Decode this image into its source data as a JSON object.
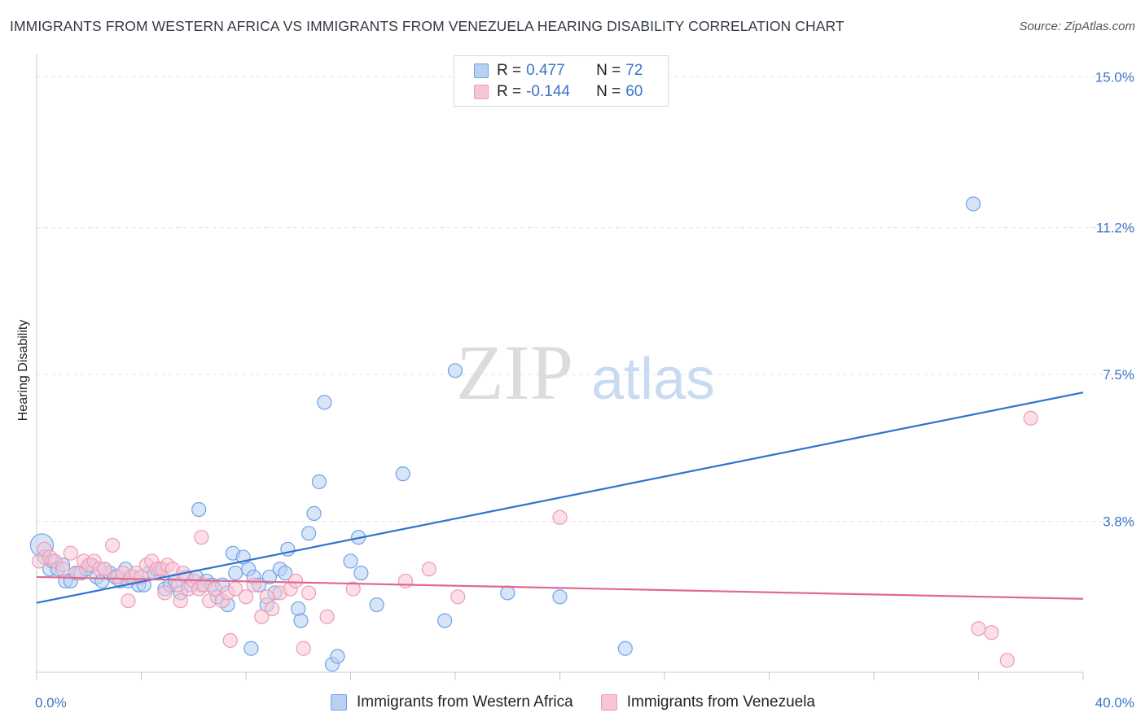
{
  "title": "IMMIGRANTS FROM WESTERN AFRICA VS IMMIGRANTS FROM VENEZUELA HEARING DISABILITY CORRELATION CHART",
  "source": "Source: ZipAtlas.com",
  "watermark": {
    "zip": "ZIP",
    "atlas": "atlas"
  },
  "legend": {
    "r_label": "R =",
    "n_label": "N =",
    "rows": [
      {
        "r": "0.477",
        "n": "72"
      },
      {
        "r": "-0.144",
        "n": "60"
      }
    ]
  },
  "chart_data": {
    "type": "scatter",
    "title": "IMMIGRANTS FROM WESTERN AFRICA VS IMMIGRANTS FROM VENEZUELA HEARING DISABILITY CORRELATION CHART",
    "xlabel": "",
    "ylabel": "Hearing Disability",
    "xlim": [
      0,
      40
    ],
    "ylim": [
      0,
      15.5
    ],
    "x_tick_labels": [
      "0.0%",
      "40.0%"
    ],
    "y_ticks": [
      3.8,
      7.5,
      11.2,
      15.0
    ],
    "y_tick_labels": [
      "3.8%",
      "7.5%",
      "11.2%",
      "15.0%"
    ],
    "grid": true,
    "legend_position": "top-center",
    "series": [
      {
        "name": "Immigrants from Western Africa",
        "color": "#6fa2e6",
        "fill": "#b8d0f2",
        "trend": {
          "x": [
            0,
            40
          ],
          "y": [
            1.75,
            7.05
          ],
          "color": "#2f73cf"
        },
        "points": [
          [
            0.2,
            3.2
          ],
          [
            0.3,
            2.9
          ],
          [
            0.5,
            2.6
          ],
          [
            0.6,
            2.8
          ],
          [
            0.8,
            2.6
          ],
          [
            1.0,
            2.7
          ],
          [
            1.1,
            2.3
          ],
          [
            1.3,
            2.3
          ],
          [
            1.5,
            2.5
          ],
          [
            1.7,
            2.5
          ],
          [
            1.9,
            2.6
          ],
          [
            2.1,
            2.7
          ],
          [
            2.3,
            2.4
          ],
          [
            2.5,
            2.3
          ],
          [
            2.6,
            2.6
          ],
          [
            2.8,
            2.5
          ],
          [
            3.0,
            2.4
          ],
          [
            3.2,
            2.3
          ],
          [
            3.4,
            2.6
          ],
          [
            3.5,
            2.3
          ],
          [
            3.7,
            2.4
          ],
          [
            3.9,
            2.2
          ],
          [
            4.1,
            2.2
          ],
          [
            4.3,
            2.5
          ],
          [
            4.5,
            2.5
          ],
          [
            4.7,
            2.6
          ],
          [
            4.9,
            2.1
          ],
          [
            5.1,
            2.2
          ],
          [
            5.3,
            2.3
          ],
          [
            5.5,
            2.0
          ],
          [
            5.7,
            2.4
          ],
          [
            5.9,
            2.2
          ],
          [
            6.1,
            2.4
          ],
          [
            6.3,
            2.2
          ],
          [
            6.5,
            2.3
          ],
          [
            6.7,
            2.2
          ],
          [
            6.9,
            1.9
          ],
          [
            7.1,
            2.2
          ],
          [
            7.3,
            1.7
          ],
          [
            7.5,
            3.0
          ],
          [
            7.6,
            2.5
          ],
          [
            7.9,
            2.9
          ],
          [
            8.1,
            2.6
          ],
          [
            8.3,
            2.4
          ],
          [
            8.5,
            2.2
          ],
          [
            8.8,
            1.7
          ],
          [
            8.9,
            2.4
          ],
          [
            9.1,
            2.0
          ],
          [
            9.3,
            2.6
          ],
          [
            9.5,
            2.5
          ],
          [
            9.6,
            3.1
          ],
          [
            10.0,
            1.6
          ],
          [
            10.1,
            1.3
          ],
          [
            10.4,
            3.5
          ],
          [
            10.6,
            4.0
          ],
          [
            10.8,
            4.8
          ],
          [
            11.0,
            6.8
          ],
          [
            11.3,
            0.2
          ],
          [
            11.5,
            0.4
          ],
          [
            12.0,
            2.8
          ],
          [
            12.3,
            3.4
          ],
          [
            12.4,
            2.5
          ],
          [
            13.0,
            1.7
          ],
          [
            14.0,
            5.0
          ],
          [
            15.6,
            1.3
          ],
          [
            16.0,
            7.6
          ],
          [
            18.0,
            2.0
          ],
          [
            20.0,
            1.9
          ],
          [
            22.5,
            0.6
          ],
          [
            8.2,
            0.6
          ],
          [
            6.2,
            4.1
          ],
          [
            35.8,
            11.8
          ]
        ]
      },
      {
        "name": "Immigrants from Venezuela",
        "color": "#ee9ab5",
        "fill": "#f7c6d6",
        "trend": {
          "x": [
            0,
            40
          ],
          "y": [
            2.4,
            1.85
          ],
          "color": "#e0698f"
        },
        "points": [
          [
            0.1,
            2.8
          ],
          [
            0.3,
            3.1
          ],
          [
            0.5,
            2.9
          ],
          [
            0.7,
            2.8
          ],
          [
            1.0,
            2.6
          ],
          [
            1.3,
            3.0
          ],
          [
            1.6,
            2.5
          ],
          [
            1.8,
            2.8
          ],
          [
            2.0,
            2.7
          ],
          [
            2.2,
            2.8
          ],
          [
            2.4,
            2.6
          ],
          [
            2.6,
            2.6
          ],
          [
            2.9,
            3.2
          ],
          [
            3.1,
            2.4
          ],
          [
            3.3,
            2.5
          ],
          [
            3.6,
            2.4
          ],
          [
            3.8,
            2.5
          ],
          [
            4.0,
            2.4
          ],
          [
            4.2,
            2.7
          ],
          [
            4.4,
            2.8
          ],
          [
            4.6,
            2.6
          ],
          [
            4.8,
            2.6
          ],
          [
            5.0,
            2.7
          ],
          [
            5.2,
            2.6
          ],
          [
            5.4,
            2.2
          ],
          [
            5.6,
            2.5
          ],
          [
            5.8,
            2.1
          ],
          [
            6.0,
            2.3
          ],
          [
            6.2,
            2.1
          ],
          [
            6.4,
            2.2
          ],
          [
            6.6,
            1.8
          ],
          [
            6.8,
            2.1
          ],
          [
            7.1,
            1.8
          ],
          [
            7.3,
            2.0
          ],
          [
            7.6,
            2.1
          ],
          [
            8.0,
            1.9
          ],
          [
            8.3,
            2.2
          ],
          [
            8.6,
            1.4
          ],
          [
            8.8,
            1.9
          ],
          [
            9.0,
            1.6
          ],
          [
            9.3,
            2.0
          ],
          [
            9.7,
            2.1
          ],
          [
            9.9,
            2.3
          ],
          [
            10.4,
            2.0
          ],
          [
            11.1,
            1.4
          ],
          [
            12.1,
            2.1
          ],
          [
            14.1,
            2.3
          ],
          [
            15.0,
            2.6
          ],
          [
            16.1,
            1.9
          ],
          [
            20.0,
            3.9
          ],
          [
            36.0,
            1.1
          ],
          [
            36.5,
            1.0
          ],
          [
            37.1,
            0.3
          ],
          [
            38.0,
            6.4
          ],
          [
            6.3,
            3.4
          ],
          [
            7.4,
            0.8
          ],
          [
            10.2,
            0.6
          ],
          [
            4.9,
            2.0
          ],
          [
            3.5,
            1.8
          ],
          [
            5.5,
            1.8
          ]
        ]
      }
    ]
  }
}
